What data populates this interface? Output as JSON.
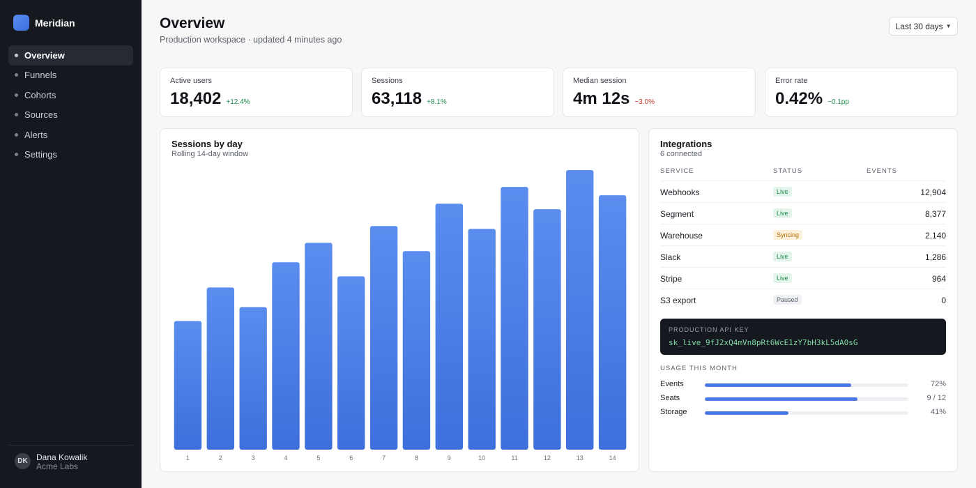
{
  "sidebar": {
    "brand": "Meridian",
    "nav": [
      {
        "label": "Overview",
        "active": true
      },
      {
        "label": "Funnels",
        "active": false
      },
      {
        "label": "Cohorts",
        "active": false
      },
      {
        "label": "Sources",
        "active": false
      },
      {
        "label": "Alerts",
        "active": false
      },
      {
        "label": "Settings",
        "active": false
      }
    ],
    "user": {
      "initials": "DK",
      "name": "Dana Kowalik",
      "org": "Acme Labs"
    }
  },
  "header": {
    "title": "Overview",
    "subtitle": "Production workspace · updated 4 minutes ago",
    "range_label": "Last 30 days"
  },
  "stats": [
    {
      "label": "Active users",
      "value": "18,402",
      "delta": "+12.4%",
      "trend": "positive"
    },
    {
      "label": "Sessions",
      "value": "63,118",
      "delta": "+8.1%",
      "trend": "positive"
    },
    {
      "label": "Median session",
      "value": "4m 12s",
      "delta": "−3.0%",
      "trend": "negative"
    },
    {
      "label": "Error rate",
      "value": "0.42%",
      "delta": "−0.1pp",
      "trend": "positive"
    }
  ],
  "sessions_panel": {
    "title": "Sessions by day",
    "subtitle": "Rolling 14-day window"
  },
  "chart_data": {
    "type": "bar",
    "title": "Sessions by day",
    "subtitle": "Rolling 14-day window",
    "categories": [
      "1",
      "2",
      "3",
      "4",
      "5",
      "6",
      "7",
      "8",
      "9",
      "10",
      "11",
      "12",
      "13",
      "14"
    ],
    "values": [
      46,
      58,
      51,
      67,
      74,
      62,
      80,
      71,
      88,
      79,
      94,
      86,
      100,
      91
    ],
    "ylim": [
      0,
      100
    ],
    "grid": false,
    "bar_color": "#4a7be5"
  },
  "integrations": {
    "title": "Integrations",
    "subtitle": "6 connected",
    "columns": [
      "SERVICE",
      "STATUS",
      "EVENTS"
    ],
    "rows": [
      {
        "service": "Webhooks",
        "status": "Live",
        "status_type": "live",
        "events": "12,904"
      },
      {
        "service": "Segment",
        "status": "Live",
        "status_type": "live",
        "events": "8,377"
      },
      {
        "service": "Warehouse",
        "status": "Syncing",
        "status_type": "syncing",
        "events": "2,140"
      },
      {
        "service": "Slack",
        "status": "Live",
        "status_type": "live",
        "events": "1,286"
      },
      {
        "service": "Stripe",
        "status": "Live",
        "status_type": "live",
        "events": "964"
      },
      {
        "service": "S3 export",
        "status": "Paused",
        "status_type": "paused",
        "events": "0"
      }
    ],
    "api_key_label": "PRODUCTION API KEY",
    "api_key_value": "sk_live_9fJ2xQ4mVn8pRt6WcE1zY7bH3kL5dA0sG",
    "usage_title": "USAGE THIS MONTH",
    "usage": [
      {
        "label": "Events",
        "value": "72%",
        "fraction": 0.72
      },
      {
        "label": "Seats",
        "value": "9 / 12",
        "fraction": 0.75
      },
      {
        "label": "Storage",
        "value": "41%",
        "fraction": 0.41
      }
    ]
  },
  "colors": {
    "accent": "#4a7be5",
    "sidebar_bg": "#15181e",
    "positive": "#1f8a4c",
    "negative": "#c0392b"
  }
}
